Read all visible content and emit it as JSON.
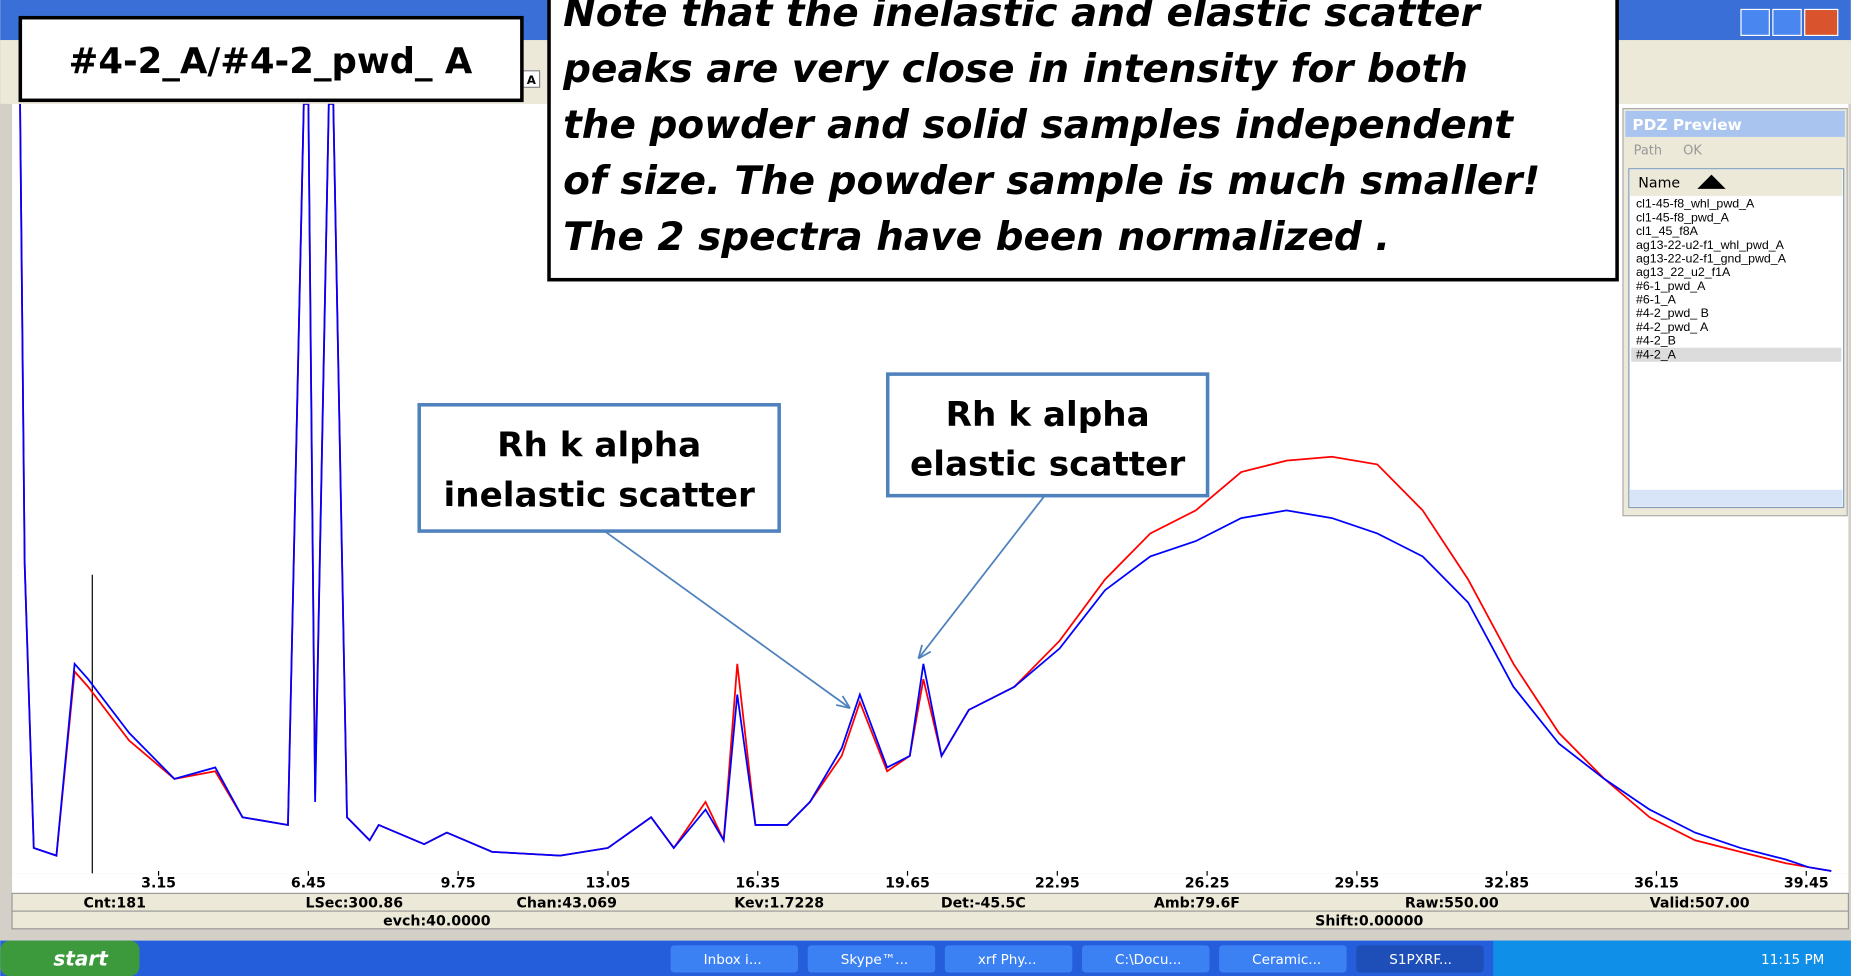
{
  "chart_data": {
    "type": "line",
    "x": [
      0.1,
      0.2,
      0.4,
      0.9,
      1.3,
      1.6,
      2.5,
      3.5,
      4.4,
      5.0,
      6.0,
      6.35,
      6.45,
      6.6,
      6.9,
      7.0,
      7.3,
      7.8,
      8.0,
      9.0,
      9.5,
      10.5,
      12,
      13.05,
      14,
      14.5,
      15.2,
      15.6,
      15.9,
      16.3,
      17,
      17.5,
      18.2,
      18.6,
      19.2,
      19.7,
      20.0,
      20.4,
      21,
      22,
      23,
      24,
      25,
      26,
      27,
      28,
      29,
      30,
      31,
      32,
      33,
      34,
      35,
      36,
      37,
      38,
      39,
      39.5,
      40
    ],
    "series": [
      {
        "color": "#ff0000",
        "values": [
          100,
          40,
          3,
          2,
          26,
          24,
          17,
          12,
          13,
          7,
          6,
          100,
          100,
          10,
          100,
          100,
          7,
          4,
          6,
          3.5,
          5,
          2.5,
          2,
          3,
          7,
          3,
          9,
          4,
          27,
          6,
          6,
          9,
          15,
          22,
          13,
          15,
          25,
          15,
          21,
          24,
          30,
          38,
          44,
          47,
          52,
          53.5,
          54,
          53,
          47,
          38,
          27,
          18,
          12,
          7,
          4,
          2.5,
          1,
          0.5,
          0
        ]
      },
      {
        "color": "#0000ff",
        "values": [
          100,
          40,
          3,
          2,
          27,
          25,
          18,
          12,
          13.5,
          7,
          6,
          100,
          100,
          9,
          100,
          100,
          7,
          4,
          6,
          3.5,
          5,
          2.5,
          2,
          3,
          7,
          3,
          8,
          4,
          23,
          6,
          6,
          9,
          16,
          23,
          13.5,
          15,
          27,
          15,
          21,
          24,
          29,
          36.6,
          41,
          43,
          46,
          47,
          46,
          44,
          41,
          35,
          24,
          16.6,
          12,
          8,
          5,
          3,
          1.5,
          0.5,
          0
        ]
      }
    ],
    "xlim": [
      0,
      40.3
    ],
    "ylim": [
      0,
      100
    ],
    "xticks": [
      3.15,
      6.45,
      9.75,
      13.05,
      16.35,
      19.65,
      22.95,
      26.25,
      29.55,
      32.85,
      36.15,
      39.45
    ]
  },
  "ui": {
    "label": "#4-2_A/#4-2_pwd_ A",
    "toolbar_letter": "A",
    "note": [
      "Note that the inelastic and elastic scatter",
      "peaks are very close in intensity for both",
      "the powder and solid samples independent",
      "of size. The powder sample is much smaller!",
      "The 2 spectra have been normalized ."
    ],
    "callout_inelastic": [
      "Rh k alpha",
      "inelastic scatter"
    ],
    "callout_elastic": [
      "Rh k alpha",
      "elastic scatter"
    ],
    "panel": {
      "title": "PDZ Preview",
      "path": "Path",
      "ok": "OK",
      "name": "Name",
      "files": [
        "cl1-45-f8_whl_pwd_A",
        "cl1-45-f8_pwd_A",
        "cl1_45_f8A",
        "ag13-22-u2-f1_whl_pwd_A",
        "ag13-22-u2-f1_gnd_pwd_A",
        "ag13_22_u2_f1A",
        "#6-1_pwd_A",
        "#6-1_A",
        "#4-2_pwd_ B",
        "#4-2_pwd_ A",
        "#4-2_B",
        "#4-2_A"
      ]
    },
    "status1": [
      "Cnt:181",
      "LSec:300.86",
      "Chan:43.069",
      "Kev:1.7228",
      "Det:-45.5C",
      "Amb:79.6F",
      "Raw:550.00",
      "Valid:507.00"
    ],
    "status2": [
      "evch:40.0000",
      "Shift:0.00000"
    ],
    "start": "start",
    "tasks": [
      "Inbox i...",
      "Skype™...",
      "xrf Phy...",
      "C:\\Docu...",
      "Ceramic...",
      "S1PXRF..."
    ],
    "clock": "11:15 PM"
  }
}
